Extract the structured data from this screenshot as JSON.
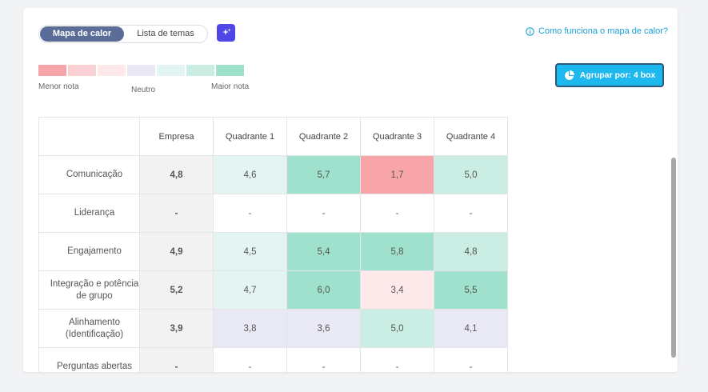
{
  "toggle": {
    "active_label": "Mapa de calor",
    "inactive_label": "Lista de temas"
  },
  "help_link": "Como funciona o mapa de calor?",
  "legend": {
    "swatches": [
      "#f8a5a9",
      "#fbd0d4",
      "#fde8ea",
      "#e9e9f5",
      "#e4f4f2",
      "#caeee3",
      "#9fe1cd"
    ],
    "min_label": "Menor nota",
    "neutral_label": "Neutro",
    "max_label": "Maior nota"
  },
  "group_button": "Agrupar por: 4 box",
  "table": {
    "columns": [
      "Empresa",
      "Quadrante 1",
      "Quadrante 2",
      "Quadrante 3",
      "Quadrante 4"
    ],
    "rows": [
      {
        "label": "Comunicação",
        "empresa": "4,8",
        "cells": [
          "4,6",
          "5,7",
          "1,7",
          "5,0"
        ]
      },
      {
        "label": "Liderança",
        "empresa": "-",
        "cells": [
          "-",
          "-",
          "-",
          "-"
        ]
      },
      {
        "label": "Engajamento",
        "empresa": "4,9",
        "cells": [
          "4,5",
          "5,4",
          "5,8",
          "4,8"
        ]
      },
      {
        "label": "Integração e potência de grupo",
        "empresa": "5,2",
        "cells": [
          "4,7",
          "6,0",
          "3,4",
          "5,5"
        ]
      },
      {
        "label": "Alinhamento (Identificação)",
        "empresa": "3,9",
        "cells": [
          "3,8",
          "3,6",
          "5,0",
          "4,1"
        ]
      },
      {
        "label": "Perguntas abertas",
        "empresa": "-",
        "cells": [
          "-",
          "-",
          "-",
          "-"
        ]
      }
    ],
    "cell_colors": [
      [
        "#e4f4f2",
        "#9fe1cd",
        "#f8a5a9",
        "#caeee3"
      ],
      [
        "#ffffff",
        "#ffffff",
        "#ffffff",
        "#ffffff"
      ],
      [
        "#e4f4f2",
        "#9fe1cd",
        "#9fe1cd",
        "#caeee3"
      ],
      [
        "#e4f4f2",
        "#9fe1cd",
        "#fde8ea",
        "#9fe1cd"
      ],
      [
        "#e9e9f5",
        "#e9e9f5",
        "#caeee3",
        "#e9e9f5"
      ],
      [
        "#ffffff",
        "#ffffff",
        "#ffffff",
        "#ffffff"
      ]
    ]
  }
}
